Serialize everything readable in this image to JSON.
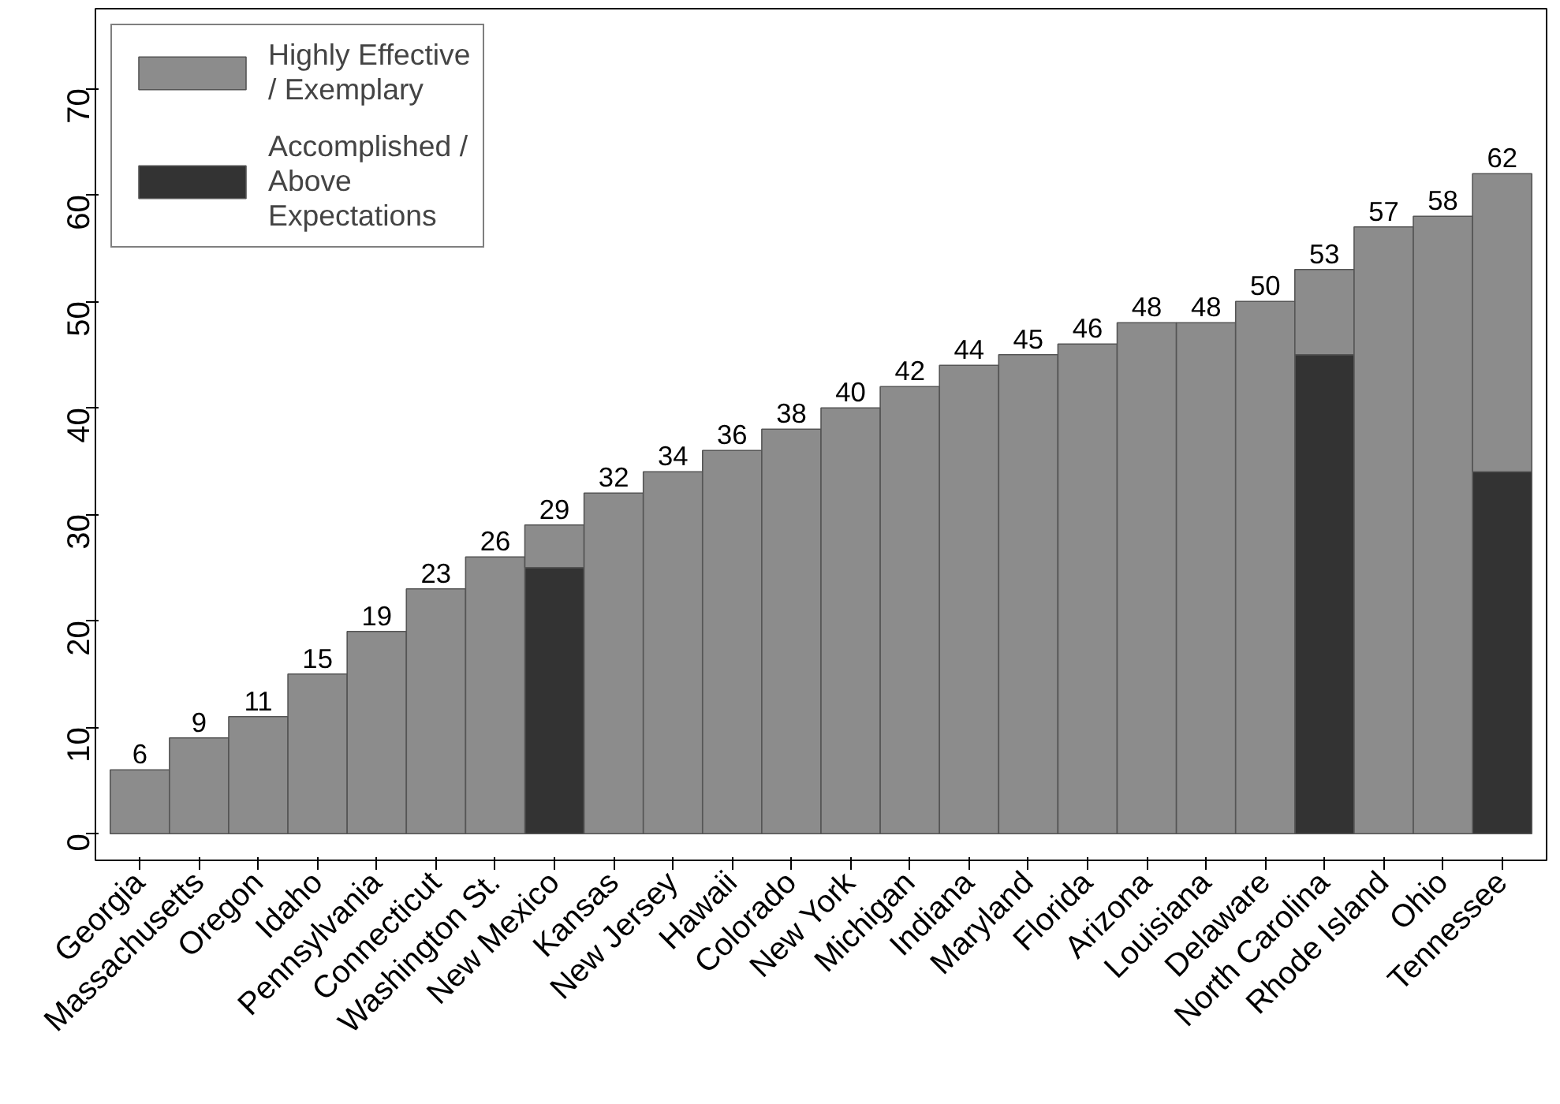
{
  "chart_data": {
    "type": "bar",
    "stacked": true,
    "categories": [
      "Georgia",
      "Massachusetts",
      "Oregon",
      "Idaho",
      "Pennsylvania",
      "Connecticut",
      "Washington St.",
      "New Mexico",
      "Kansas",
      "New Jersey",
      "Hawaii",
      "Colorado",
      "New York",
      "Michigan",
      "Indiana",
      "Maryland",
      "Florida",
      "Arizona",
      "Louisiana",
      "Delaware",
      "North Carolina",
      "Rhode Island",
      "Ohio",
      "Tennessee"
    ],
    "series": [
      {
        "name": "Accomplished / Above Expectations",
        "color": "#333333",
        "values": [
          0,
          0,
          0,
          0,
          0,
          0,
          0,
          25,
          0,
          0,
          0,
          0,
          0,
          0,
          0,
          0,
          0,
          0,
          0,
          0,
          45,
          0,
          0,
          34
        ]
      },
      {
        "name": "Highly Effective / Exemplary",
        "color": "#8c8c8c",
        "values": [
          6,
          9,
          11,
          15,
          19,
          23,
          26,
          4,
          32,
          34,
          36,
          38,
          40,
          42,
          44,
          45,
          46,
          48,
          48,
          50,
          8,
          57,
          58,
          28
        ]
      }
    ],
    "totals": [
      "6",
      "9",
      "11",
      "15",
      "19",
      "23",
      "26",
      "29",
      "32",
      "34",
      "36",
      "38",
      "40",
      "42",
      "44",
      "45",
      "46",
      "48",
      "48",
      "50",
      "53",
      "57",
      "58",
      "62"
    ],
    "ylim": [
      -2.5,
      77.5
    ],
    "yticks": [
      0,
      10,
      20,
      30,
      40,
      50,
      60,
      70
    ],
    "grid": false,
    "legend": "top left"
  }
}
